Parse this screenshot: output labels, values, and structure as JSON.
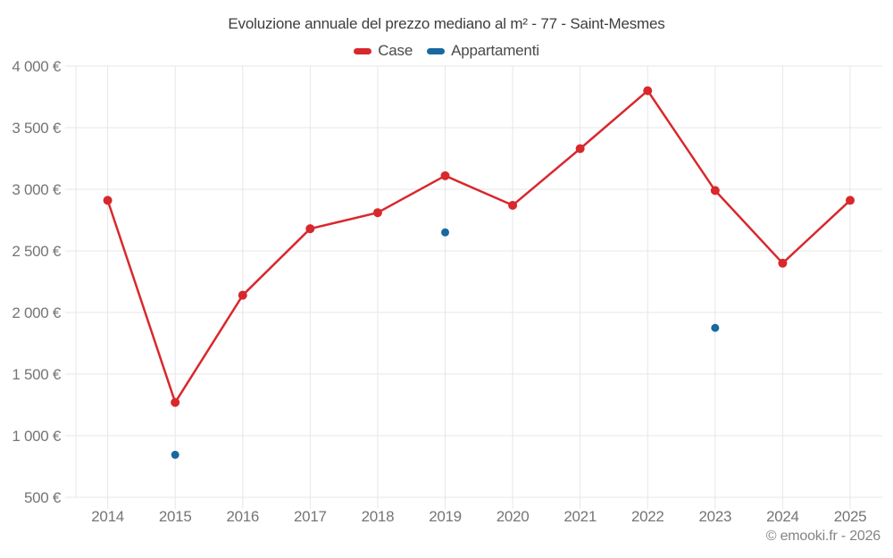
{
  "footer": "© emooki.fr - 2026",
  "chart_data": {
    "type": "line",
    "title": "Evoluzione annuale del prezzo mediano al m² - 77 - Saint-Mesmes",
    "x": [
      2014,
      2015,
      2016,
      2017,
      2018,
      2019,
      2020,
      2021,
      2022,
      2023,
      2024,
      2025
    ],
    "series": [
      {
        "name": "Case",
        "type": "line-with-markers",
        "color": "#d8282d",
        "values": [
          2910,
          1270,
          2140,
          2680,
          2810,
          3110,
          2870,
          3330,
          3800,
          2990,
          2400,
          2910
        ]
      },
      {
        "name": "Appartamenti",
        "type": "markers-only",
        "color": "#17699e",
        "values": [
          null,
          845,
          null,
          null,
          null,
          2650,
          null,
          null,
          null,
          1875,
          null,
          null
        ]
      }
    ],
    "ylim": [
      500,
      4000
    ],
    "ytick_step": 500,
    "ytick_suffix": " €",
    "thousands_separator": " ",
    "grid": true,
    "legend_position": "top",
    "colors": {
      "grid_line": "#e7e7e7",
      "tick_label": "#757575",
      "title_text": "#3d3d3d",
      "legend_text": "#4a4a4a",
      "footer_text": "#848484"
    }
  }
}
